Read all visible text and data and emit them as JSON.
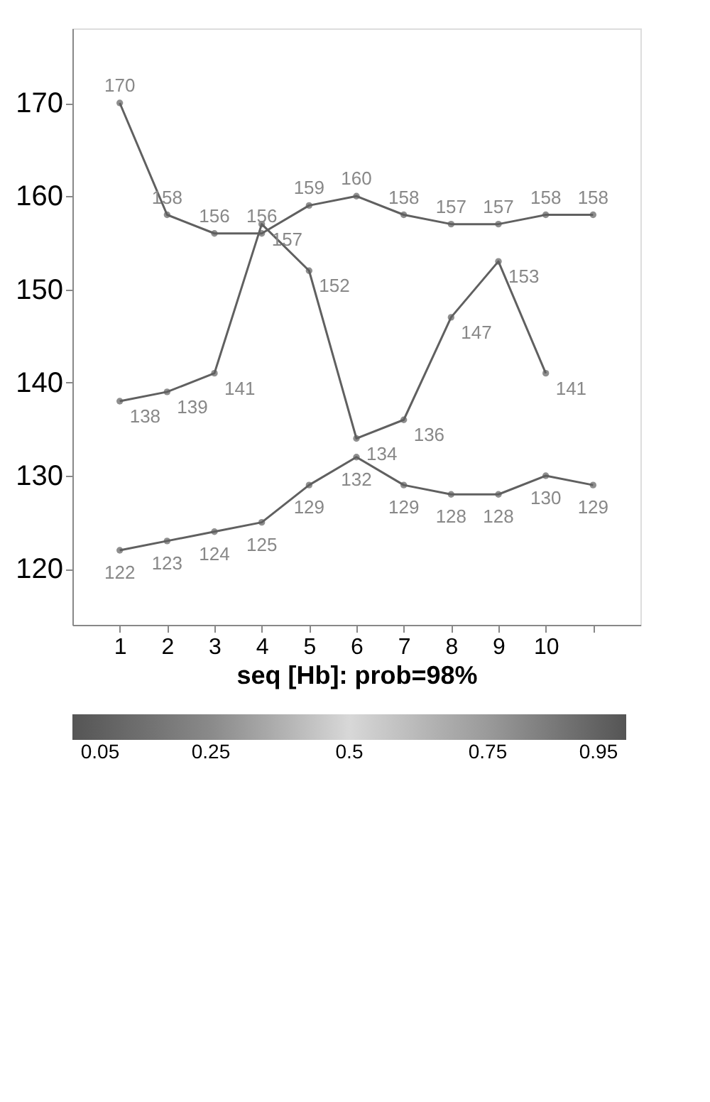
{
  "chart_data": {
    "type": "line",
    "xlabel": "seq [Hb]: prob=98%",
    "x": [
      1,
      2,
      3,
      4,
      5,
      6,
      7,
      8,
      9,
      10,
      11
    ],
    "series": [
      {
        "color": "#606060",
        "values": [
          170,
          158,
          156,
          156,
          159,
          160,
          158,
          157,
          157,
          158,
          158
        ]
      },
      {
        "color": "#606060",
        "values": [
          138,
          139,
          141,
          157,
          152,
          134,
          136,
          147,
          153,
          141,
          null
        ]
      },
      {
        "color": "#606060",
        "values": [
          122,
          123,
          124,
          125,
          129,
          132,
          129,
          128,
          128,
          130,
          129
        ]
      }
    ],
    "data_labels": true,
    "marker": "circle",
    "xlim": [
      0,
      12
    ],
    "xticks": [
      1,
      2,
      3,
      4,
      5,
      6,
      7,
      8,
      9,
      10,
      {
        "value": 11,
        "label": null
      }
    ],
    "ylim": [
      114,
      178
    ],
    "yticks": [
      120,
      130,
      140,
      150,
      160,
      170
    ],
    "grid": false,
    "clim": [
      0,
      1
    ],
    "cticks": [
      0.05,
      0.25,
      0.5,
      0.75,
      0.95
    ]
  }
}
